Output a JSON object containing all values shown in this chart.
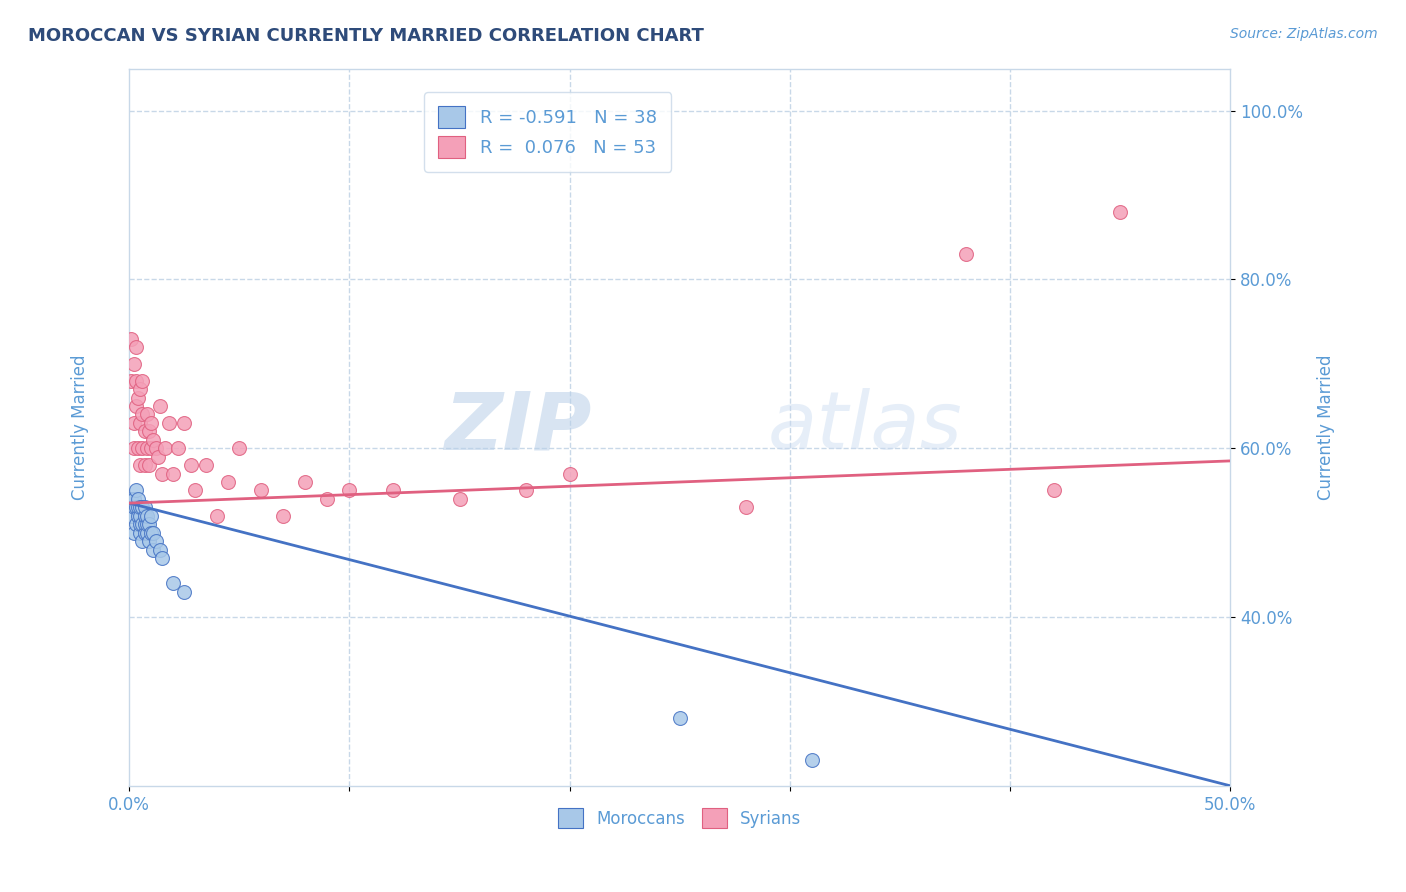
{
  "title": "MOROCCAN VS SYRIAN CURRENTLY MARRIED CORRELATION CHART",
  "source": "Source: ZipAtlas.com",
  "ylabel": "Currently Married",
  "legend_moroccan": "Moroccans",
  "legend_syrian": "Syrians",
  "moroccan_R": -0.591,
  "moroccan_N": 38,
  "syrian_R": 0.076,
  "syrian_N": 53,
  "moroccan_color": "#a8c8e8",
  "syrian_color": "#f4a0b8",
  "moroccan_line_color": "#4472c4",
  "syrian_line_color": "#e06080",
  "title_color": "#2e4b7a",
  "label_color": "#5b9bd5",
  "background_color": "#ffffff",
  "grid_color": "#c8d8e8",
  "watermark_zip": "ZIP",
  "watermark_atlas": "atlas",
  "xlim": [
    0.0,
    0.5
  ],
  "ylim": [
    0.2,
    1.05
  ],
  "yticks": [
    0.4,
    0.6,
    0.8,
    1.0
  ],
  "ytick_labels": [
    "40.0%",
    "60.0%",
    "80.0%",
    "100.0%"
  ],
  "moroccan_scatter_x": [
    0.001,
    0.001,
    0.002,
    0.002,
    0.002,
    0.003,
    0.003,
    0.003,
    0.004,
    0.004,
    0.004,
    0.005,
    0.005,
    0.005,
    0.005,
    0.006,
    0.006,
    0.006,
    0.007,
    0.007,
    0.007,
    0.007,
    0.008,
    0.008,
    0.008,
    0.009,
    0.009,
    0.01,
    0.01,
    0.011,
    0.011,
    0.012,
    0.014,
    0.015,
    0.02,
    0.025,
    0.25,
    0.31
  ],
  "moroccan_scatter_y": [
    0.54,
    0.52,
    0.53,
    0.54,
    0.5,
    0.51,
    0.53,
    0.55,
    0.52,
    0.53,
    0.54,
    0.5,
    0.51,
    0.52,
    0.53,
    0.49,
    0.51,
    0.53,
    0.5,
    0.51,
    0.52,
    0.53,
    0.5,
    0.51,
    0.52,
    0.49,
    0.51,
    0.5,
    0.52,
    0.48,
    0.5,
    0.49,
    0.48,
    0.47,
    0.44,
    0.43,
    0.28,
    0.23
  ],
  "syrian_scatter_x": [
    0.001,
    0.001,
    0.002,
    0.002,
    0.002,
    0.003,
    0.003,
    0.003,
    0.004,
    0.004,
    0.005,
    0.005,
    0.005,
    0.006,
    0.006,
    0.006,
    0.007,
    0.007,
    0.008,
    0.008,
    0.009,
    0.009,
    0.01,
    0.01,
    0.011,
    0.012,
    0.013,
    0.014,
    0.015,
    0.016,
    0.018,
    0.02,
    0.022,
    0.025,
    0.028,
    0.03,
    0.035,
    0.04,
    0.045,
    0.05,
    0.06,
    0.07,
    0.08,
    0.09,
    0.1,
    0.12,
    0.15,
    0.18,
    0.2,
    0.28,
    0.38,
    0.42,
    0.45
  ],
  "syrian_scatter_y": [
    0.73,
    0.68,
    0.63,
    0.7,
    0.6,
    0.65,
    0.68,
    0.72,
    0.66,
    0.6,
    0.63,
    0.58,
    0.67,
    0.64,
    0.6,
    0.68,
    0.58,
    0.62,
    0.6,
    0.64,
    0.58,
    0.62,
    0.6,
    0.63,
    0.61,
    0.6,
    0.59,
    0.65,
    0.57,
    0.6,
    0.63,
    0.57,
    0.6,
    0.63,
    0.58,
    0.55,
    0.58,
    0.52,
    0.56,
    0.6,
    0.55,
    0.52,
    0.56,
    0.54,
    0.55,
    0.55,
    0.54,
    0.55,
    0.57,
    0.53,
    0.83,
    0.55,
    0.88
  ],
  "moroccan_trend_x0": 0.0,
  "moroccan_trend_y0": 0.535,
  "moroccan_trend_x1": 0.5,
  "moroccan_trend_y1": 0.2,
  "syrian_trend_x0": 0.0,
  "syrian_trend_y0": 0.535,
  "syrian_trend_x1": 0.5,
  "syrian_trend_y1": 0.585
}
